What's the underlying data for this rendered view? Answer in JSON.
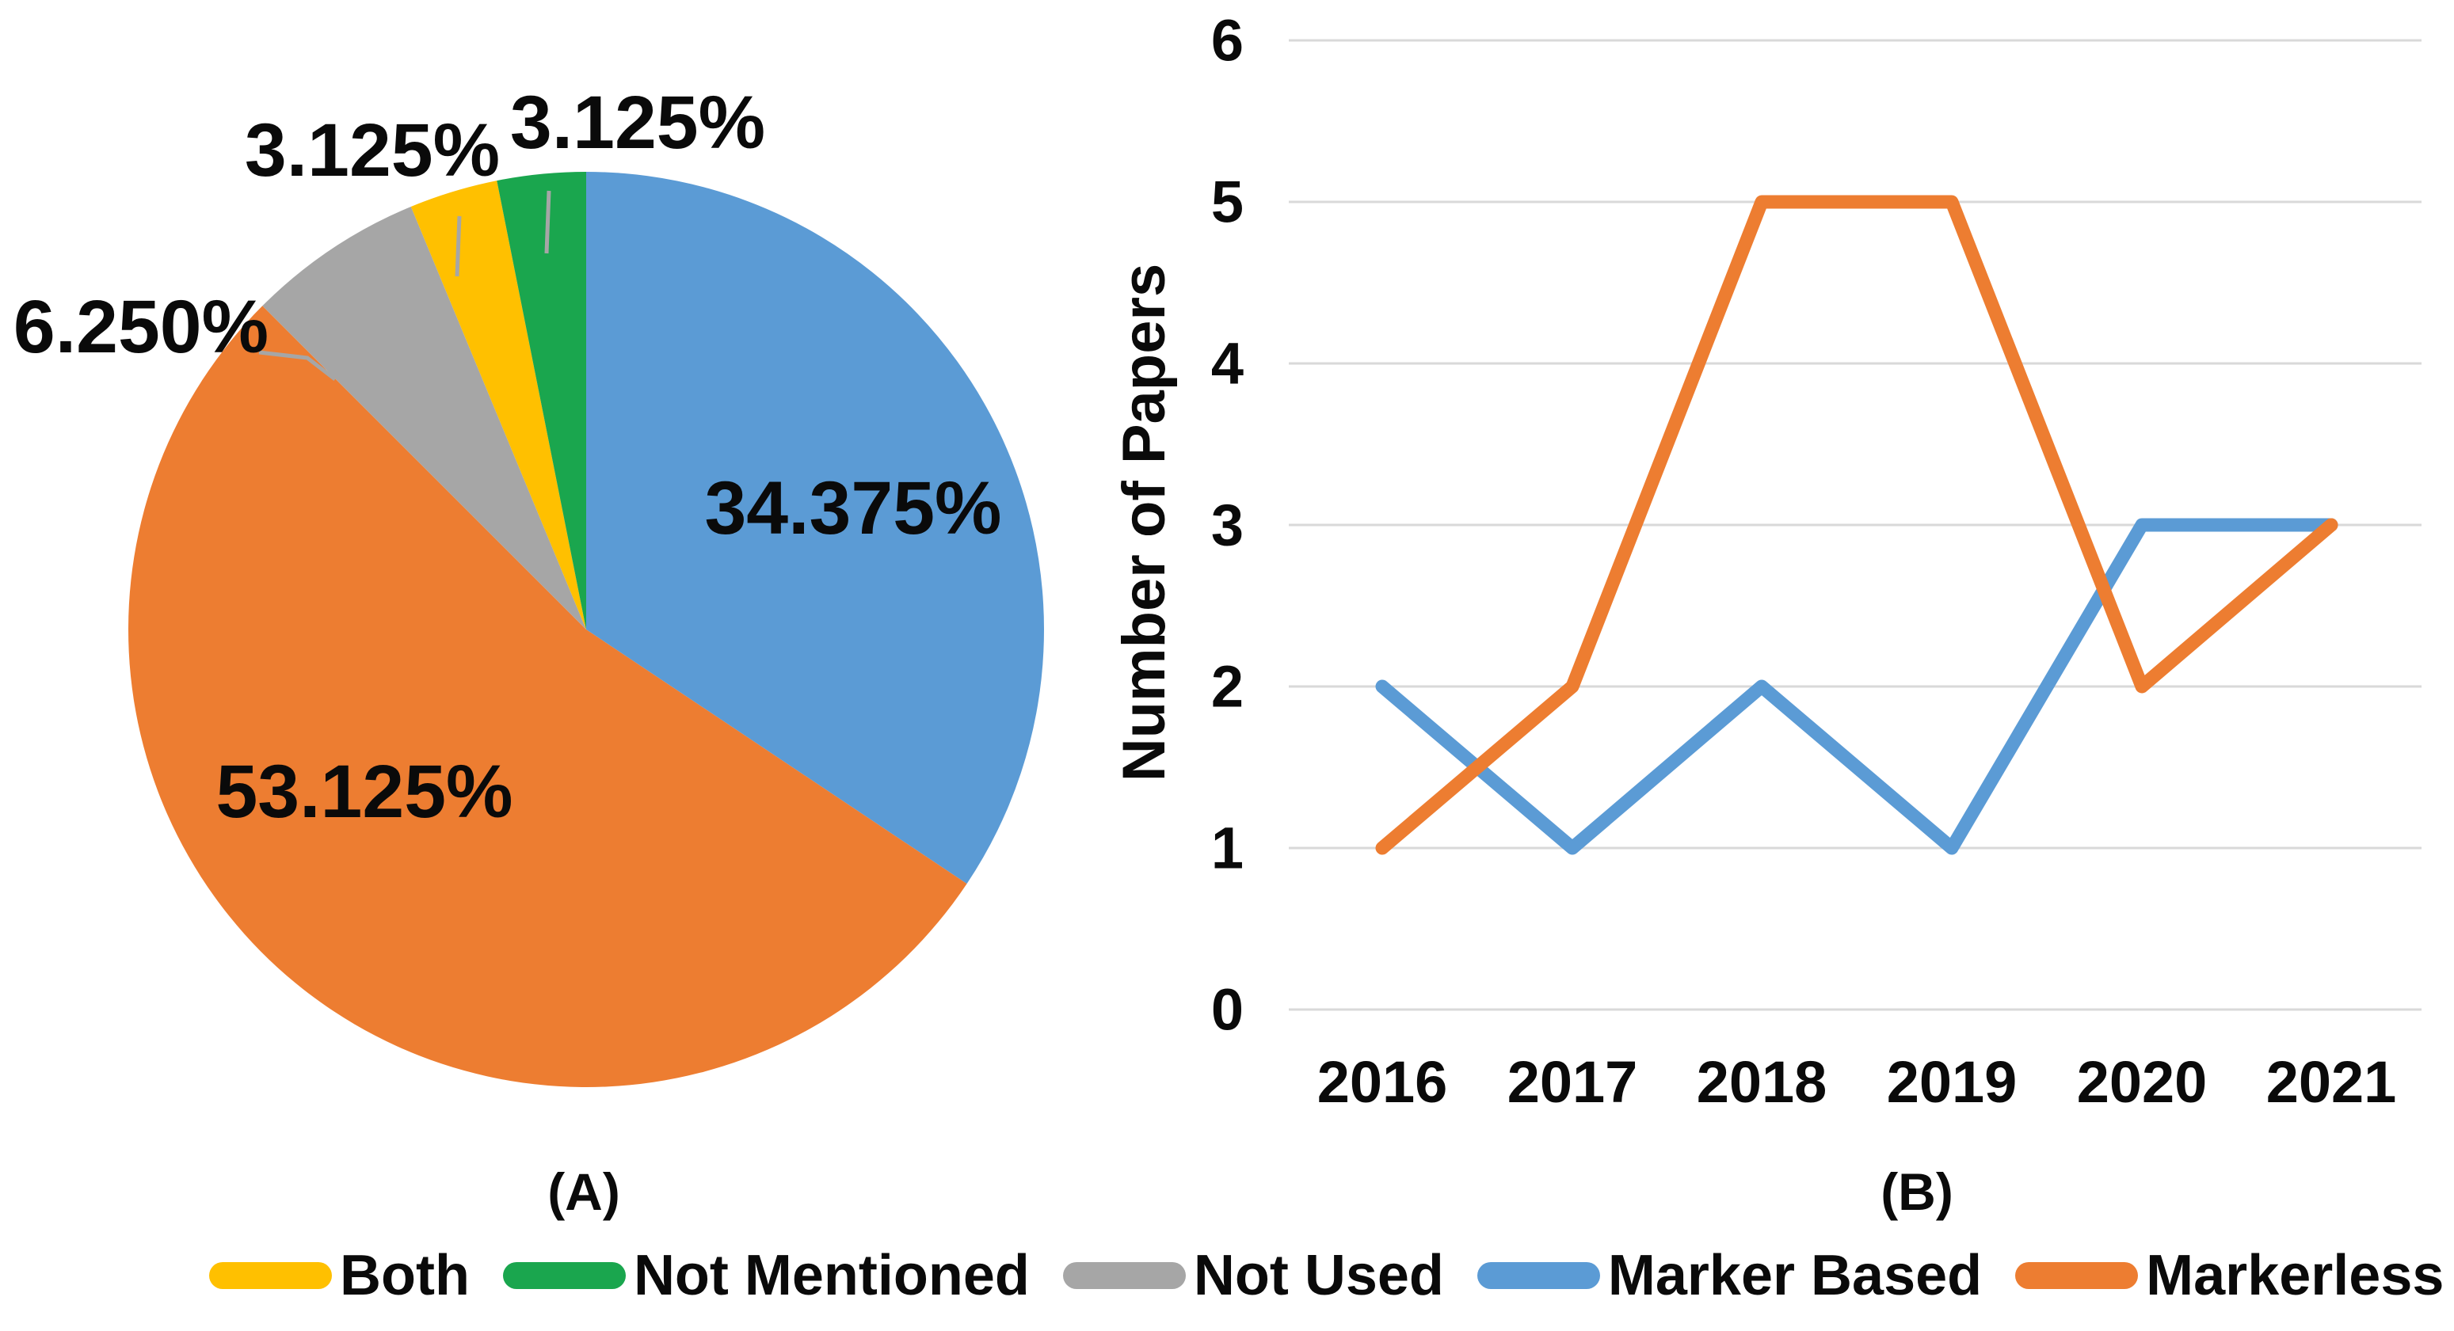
{
  "figure": {
    "caption_a": "(A)",
    "caption_b": "(B)"
  },
  "chart_data": [
    {
      "type": "pie",
      "panel": "A",
      "start_angle_deg": 0,
      "direction": "clockwise",
      "slices": [
        {
          "label": "Marker Based",
          "value": 34.375,
          "display": "34.375%",
          "color": "#5B9BD5",
          "label_placement": "inside"
        },
        {
          "label": "Markerless",
          "value": 53.125,
          "display": "53.125%",
          "color": "#ED7D31",
          "label_placement": "inside"
        },
        {
          "label": "Not Used",
          "value": 6.25,
          "display": "6.250%",
          "color": "#A6A6A6",
          "label_placement": "outside"
        },
        {
          "label": "Both",
          "value": 3.125,
          "display": "3.125%",
          "color": "#FFC000",
          "label_placement": "outside"
        },
        {
          "label": "Not Mentioned",
          "value": 3.125,
          "display": "3.125%",
          "color": "#1AA64E",
          "label_placement": "outside"
        }
      ]
    },
    {
      "type": "line",
      "panel": "B",
      "categories": [
        "2016",
        "2017",
        "2018",
        "2019",
        "2020",
        "2021"
      ],
      "series": [
        {
          "name": "Marker Based",
          "color": "#5B9BD5",
          "values": [
            2,
            1,
            2,
            1,
            3,
            3
          ]
        },
        {
          "name": "Markerless",
          "color": "#ED7D31",
          "values": [
            1,
            2,
            5,
            5,
            2,
            3
          ]
        }
      ],
      "ylabel": "Number of Papers",
      "ylim": [
        0,
        6
      ],
      "ytick_step": 1,
      "yticks": [
        "0",
        "1",
        "2",
        "3",
        "4",
        "5",
        "6"
      ],
      "grid": true,
      "gridline_color": "#D9D9D9",
      "legend_position": "none"
    }
  ],
  "legend": {
    "items": [
      {
        "label": "Both",
        "color": "#FFC000"
      },
      {
        "label": "Not Mentioned",
        "color": "#1AA64E"
      },
      {
        "label": "Not Used",
        "color": "#A6A6A6"
      },
      {
        "label": "Marker Based",
        "color": "#5B9BD5"
      },
      {
        "label": "Markerless",
        "color": "#ED7D31"
      }
    ]
  }
}
